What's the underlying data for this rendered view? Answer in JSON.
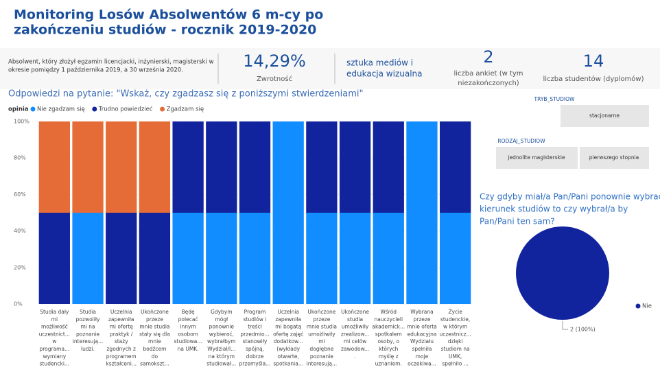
{
  "header": {
    "title_lines": [
      "Monitoring Losów Absolwentów 6 m-cy po",
      "zakończeniu studiów - rocznik 2019-2020"
    ]
  },
  "info": {
    "description_lines": [
      "Absolwent, który złożył egzamin licencjacki, inżynierski, magisterski w",
      "okresie pomiędzy 1 października 2019, a 30 września 2020."
    ]
  },
  "kpis": {
    "response_rate": {
      "value": "14,29%",
      "label": "Zwrotność"
    },
    "field": {
      "lines": [
        "sztuka mediów i",
        "edukacja wizualna"
      ]
    },
    "surveys": {
      "value": "2",
      "label_lines": [
        "liczba ankiet (w tym",
        "niezakończonych)"
      ]
    },
    "students": {
      "value": "14",
      "label": "liczba studentów (dyplomów)"
    }
  },
  "slicers": {
    "mode": {
      "title": "TRYB_STUDIOW",
      "options": [
        "stacjonarne"
      ]
    },
    "kind": {
      "title": "RODZAJ_STUDIOW",
      "options": [
        "jednolite magisterskie",
        "pierwszego stopnia"
      ]
    }
  },
  "bar_chart": {
    "type": "bar",
    "stacked": true,
    "title": "Odpowiedzi na pytanie: \"Wskaż, czy zgadzasz się z poniższymi stwierdzeniami\"",
    "legend_title": "opinia",
    "categories": [
      [
        "Studia dały",
        "mi",
        "możliwość",
        "uczestnict...",
        "w",
        "programa...",
        "wymiany",
        "studencki..."
      ],
      [
        "Studia",
        "pozwoliły",
        "mi na",
        "poznanie",
        "interesują...",
        "ludzi."
      ],
      [
        "Uczelnia",
        "zapewniła",
        "mi ofertę",
        "praktyk /",
        "staży",
        "zgodnych z",
        "programem",
        "kształceni..."
      ],
      [
        "Ukończone",
        "przeze",
        "mnie studia",
        "stały się dla",
        "mnie",
        "bodźcem",
        "do",
        "samokszt..."
      ],
      [
        "Będę",
        "polecać",
        "innym",
        "osobom",
        "studiowa...",
        "na UMK."
      ],
      [
        "Gdybym",
        "mógł",
        "ponownie",
        "wybierać,",
        "wybrałbym",
        "Wydział/I...",
        "na którym",
        "studiował..."
      ],
      [
        "Program",
        "studiów i",
        "treści",
        "przedmio...",
        "stanowiły",
        "spójną,",
        "dobrze",
        "przemyśla..."
      ],
      [
        "Uczelnia",
        "zapewniła",
        "mi bogatą",
        "ofertę zajęć",
        "dodatkow...",
        "(wykłady",
        "otwarte,",
        "spotkania..."
      ],
      [
        "Ukończone",
        "przeze",
        "mnie studia",
        "umożliwiły",
        "mi",
        "dogłębne",
        "poznanie",
        "interesują..."
      ],
      [
        "Ukończone",
        "studia",
        "umożliwiły",
        "zrealizow...",
        "mi celów",
        "zawodow...",
        "."
      ],
      [
        "Wśród",
        "nauczycieli",
        "akademick...",
        "spotkałem",
        "osoby, o",
        "których",
        "myślę z",
        "uznaniem."
      ],
      [
        "Wybrana",
        "przeze",
        "mnie oferta",
        "edukacyjna",
        "Wydziału",
        "spełniła",
        "moje",
        "oczekiwa..."
      ],
      [
        "Życie",
        "studenckie,",
        "w którym",
        "uczestnicz...",
        "dzięki",
        "studiom na",
        "UMK,",
        "spełniło ..."
      ]
    ],
    "series": [
      {
        "name": "Nie zgadzam się",
        "color": "#118dff",
        "values": [
          0,
          50,
          0,
          0,
          50,
          50,
          50,
          100,
          50,
          50,
          50,
          100,
          50
        ]
      },
      {
        "name": "Trudno powiedzieć",
        "color": "#12239e",
        "values": [
          50,
          0,
          50,
          50,
          50,
          50,
          50,
          0,
          50,
          50,
          50,
          0,
          50
        ]
      },
      {
        "name": "Zgadzam się",
        "color": "#e66c37",
        "values": [
          50,
          50,
          50,
          50,
          0,
          0,
          0,
          0,
          0,
          0,
          0,
          0,
          0
        ]
      }
    ],
    "ylim": [
      0,
      100
    ],
    "yticks": [
      {
        "value": 0,
        "label": "0%"
      },
      {
        "value": 20,
        "label": "20%"
      },
      {
        "value": 40,
        "label": "40%"
      },
      {
        "value": 60,
        "label": "60%"
      },
      {
        "value": 80,
        "label": "80%"
      },
      {
        "value": 100,
        "label": "100%"
      }
    ],
    "grid": true
  },
  "pie_chart": {
    "type": "pie",
    "title_lines": [
      "Czy gdyby miał/a Pan/Pani ponownie wybrać",
      "kierunek studiów to czy wybrał/a by",
      "Pan/Pani ten sam?"
    ],
    "categories": [
      "Nie"
    ],
    "values": [
      2
    ],
    "value_labels": [
      "2 (100%)"
    ],
    "colors": [
      "#12239e"
    ]
  }
}
